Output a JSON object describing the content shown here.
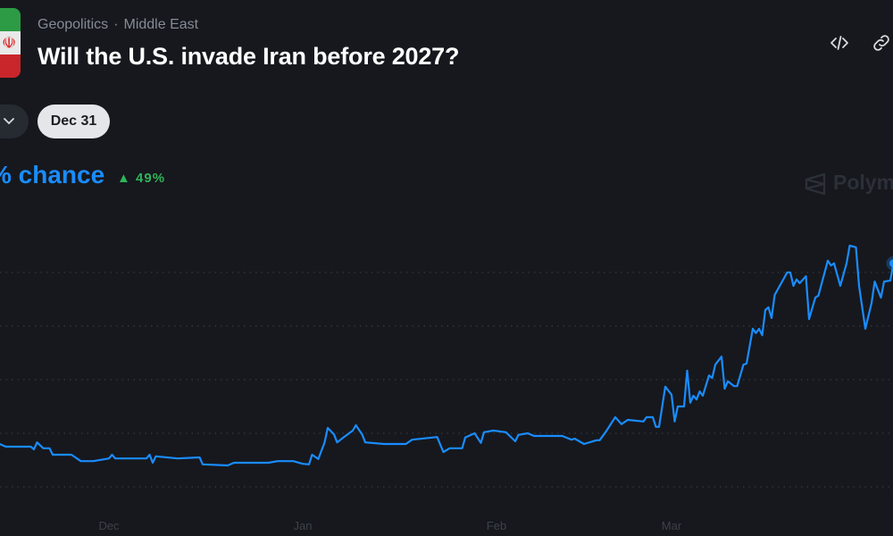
{
  "header": {
    "category": "Geopolitics",
    "subcategory": "Middle East",
    "separator": "·",
    "title": "Will the U.S. invade Iran before 2027?",
    "icons": [
      "iran-flag-icon",
      "embed-code-icon",
      "link-icon"
    ]
  },
  "controls": {
    "dropdown_icon": "chevron-down-icon",
    "selected_date": "Dec 31"
  },
  "summary": {
    "chance_label": "% chance",
    "change": "49%",
    "change_direction": "up",
    "watermark": "Polym"
  },
  "colors": {
    "line": "#1a8cff",
    "positive": "#2fb35a",
    "background": "#16181d"
  },
  "chart_data": {
    "type": "line",
    "title": "",
    "xlabel": "",
    "ylabel": "",
    "x_ticks": [
      "Dec",
      "Jan",
      "Feb",
      "Mar"
    ],
    "x_tick_dates": [
      "2025-12-01",
      "2026-01-01",
      "2026-02-01",
      "2026-03-01"
    ],
    "ylim": [
      0,
      40
    ],
    "y_gridlines": [
      0,
      10,
      20,
      30,
      40
    ],
    "grid": "horizontal dotted",
    "series": [
      {
        "points": [
          [
            "2025-11-13T12:00",
            8.0
          ],
          [
            "2025-11-14T12:00",
            7.5
          ],
          [
            "2025-11-18T12:00",
            7.5
          ],
          [
            "2025-11-19T00:00",
            7.0
          ],
          [
            "2025-11-19T12:00",
            8.3
          ],
          [
            "2025-11-20T12:00",
            7.2
          ],
          [
            "2025-11-21T12:00",
            7.2
          ],
          [
            "2025-11-22T00:00",
            6.0
          ],
          [
            "2025-11-25T00:00",
            6.0
          ],
          [
            "2025-11-26T12:00",
            4.8
          ],
          [
            "2025-11-28T12:00",
            4.8
          ],
          [
            "2025-12-01T00:00",
            5.3
          ],
          [
            "2025-12-01T12:00",
            6.0
          ],
          [
            "2025-12-02T00:00",
            5.3
          ],
          [
            "2025-12-07T00:00",
            5.3
          ],
          [
            "2025-12-07T12:00",
            6.0
          ],
          [
            "2025-12-08T00:00",
            4.5
          ],
          [
            "2025-12-08T12:00",
            5.7
          ],
          [
            "2025-12-12T00:00",
            5.3
          ],
          [
            "2025-12-15T12:00",
            5.5
          ],
          [
            "2025-12-16T00:00",
            4.2
          ],
          [
            "2025-12-20T00:00",
            4.0
          ],
          [
            "2025-12-21T00:00",
            4.5
          ],
          [
            "2025-12-26T12:00",
            4.5
          ],
          [
            "2025-12-28T00:00",
            4.8
          ],
          [
            "2025-12-30T12:00",
            4.8
          ],
          [
            "2026-01-01T00:00",
            4.3
          ],
          [
            "2026-01-02T00:00",
            4.2
          ],
          [
            "2026-01-02T12:00",
            6.0
          ],
          [
            "2026-01-03T12:00",
            5.2
          ],
          [
            "2026-01-04T12:00",
            8.3
          ],
          [
            "2026-01-05T00:00",
            11.0
          ],
          [
            "2026-01-06T00:00",
            9.8
          ],
          [
            "2026-01-06T12:00",
            8.3
          ],
          [
            "2026-01-07T12:00",
            9.2
          ],
          [
            "2026-01-09T00:00",
            10.5
          ],
          [
            "2026-01-09T12:00",
            11.5
          ],
          [
            "2026-01-10T12:00",
            9.8
          ],
          [
            "2026-01-11T00:00",
            8.3
          ],
          [
            "2026-01-14T00:00",
            8.0
          ],
          [
            "2026-01-17T12:00",
            8.0
          ],
          [
            "2026-01-18T12:00",
            8.8
          ],
          [
            "2026-01-22T12:00",
            9.3
          ],
          [
            "2026-01-23T12:00",
            6.5
          ],
          [
            "2026-01-24T12:00",
            7.2
          ],
          [
            "2026-01-26T12:00",
            7.2
          ],
          [
            "2026-01-27T00:00",
            9.2
          ],
          [
            "2026-01-28T12:00",
            10.0
          ],
          [
            "2026-01-29T12:00",
            8.2
          ],
          [
            "2026-01-30T00:00",
            10.2
          ],
          [
            "2026-01-31T12:00",
            10.5
          ],
          [
            "2026-02-02T12:00",
            10.2
          ],
          [
            "2026-02-04T00:00",
            8.5
          ],
          [
            "2026-02-04T12:00",
            9.7
          ],
          [
            "2026-02-06T00:00",
            10.0
          ],
          [
            "2026-02-07T00:00",
            9.5
          ],
          [
            "2026-02-11T12:00",
            9.5
          ],
          [
            "2026-02-13T00:00",
            8.8
          ],
          [
            "2026-02-13T12:00",
            9.0
          ],
          [
            "2026-02-15T00:00",
            8.0
          ],
          [
            "2026-02-17T00:00",
            8.7
          ],
          [
            "2026-02-17T12:00",
            8.7
          ],
          [
            "2026-02-18T12:00",
            10.3
          ],
          [
            "2026-02-20T00:00",
            13.0
          ],
          [
            "2026-02-21T00:00",
            11.7
          ],
          [
            "2026-02-22T00:00",
            12.5
          ],
          [
            "2026-02-24T12:00",
            12.2
          ],
          [
            "2026-02-25T00:00",
            13.0
          ],
          [
            "2026-02-26T00:00",
            13.0
          ],
          [
            "2026-02-26T12:00",
            11.2
          ],
          [
            "2026-02-27T00:00",
            11.2
          ],
          [
            "2026-02-28T00:00",
            18.7
          ],
          [
            "2026-03-01T00:00",
            17.2
          ],
          [
            "2026-03-01T12:00",
            12.2
          ],
          [
            "2026-03-02T00:00",
            15.0
          ],
          [
            "2026-03-03T00:00",
            15.0
          ],
          [
            "2026-03-03T12:00",
            21.7
          ],
          [
            "2026-03-04T00:00",
            15.7
          ],
          [
            "2026-03-04T12:00",
            17.0
          ],
          [
            "2026-03-05T00:00",
            16.3
          ],
          [
            "2026-03-05T12:00",
            17.8
          ],
          [
            "2026-03-06T00:00",
            17.0
          ],
          [
            "2026-03-07T00:00",
            20.8
          ],
          [
            "2026-03-07T12:00",
            20.3
          ],
          [
            "2026-03-08T00:00",
            22.8
          ],
          [
            "2026-03-09T00:00",
            24.3
          ],
          [
            "2026-03-09T12:00",
            18.3
          ],
          [
            "2026-03-10T00:00",
            19.7
          ],
          [
            "2026-03-11T00:00",
            18.8
          ],
          [
            "2026-03-11T12:00",
            18.8
          ],
          [
            "2026-03-12T12:00",
            22.8
          ],
          [
            "2026-03-13T00:00",
            23.0
          ],
          [
            "2026-03-14T00:00",
            29.5
          ],
          [
            "2026-03-14T12:00",
            28.7
          ],
          [
            "2026-03-15T00:00",
            29.5
          ],
          [
            "2026-03-15T12:00",
            28.3
          ],
          [
            "2026-03-16T00:00",
            33.0
          ],
          [
            "2026-03-16T12:00",
            33.5
          ],
          [
            "2026-03-17T00:00",
            31.5
          ],
          [
            "2026-03-17T12:00",
            35.8
          ],
          [
            "2026-03-19T12:00",
            40.0
          ],
          [
            "2026-03-20T00:00",
            40.0
          ],
          [
            "2026-03-20T12:00",
            37.5
          ],
          [
            "2026-03-21T00:00",
            38.7
          ],
          [
            "2026-03-21T12:00",
            38.0
          ],
          [
            "2026-03-22T12:00",
            39.3
          ],
          [
            "2026-03-23T00:00",
            31.3
          ],
          [
            "2026-03-24T00:00",
            35.3
          ],
          [
            "2026-03-24T12:00",
            35.7
          ],
          [
            "2026-03-26T00:00",
            42.2
          ],
          [
            "2026-03-26T12:00",
            41.3
          ],
          [
            "2026-03-27T00:00",
            41.7
          ],
          [
            "2026-03-28T00:00",
            37.5
          ],
          [
            "2026-03-29T00:00",
            41.7
          ],
          [
            "2026-03-29T12:00",
            45.0
          ],
          [
            "2026-03-30T12:00",
            44.7
          ],
          [
            "2026-03-31T00:00",
            37.5
          ],
          [
            "2026-04-01T00:00",
            29.5
          ],
          [
            "2026-04-02T00:00",
            34.3
          ],
          [
            "2026-04-02T12:00",
            38.3
          ],
          [
            "2026-04-03T12:00",
            35.3
          ],
          [
            "2026-04-04T00:00",
            38.3
          ],
          [
            "2026-04-05T00:00",
            38.5
          ],
          [
            "2026-04-05T12:00",
            41.7
          ]
        ]
      }
    ]
  }
}
